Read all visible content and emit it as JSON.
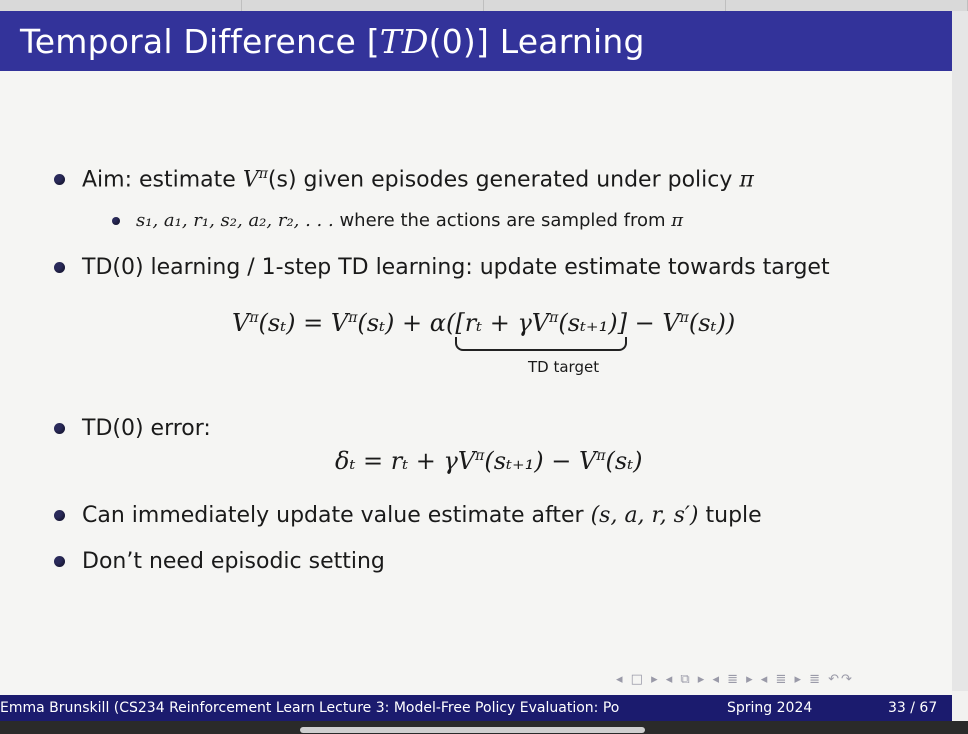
{
  "title": {
    "prefix": "Temporal Difference [",
    "math": "TD",
    "mid": "(0)",
    "suffix": "] Learning"
  },
  "bullets": {
    "aim_a": "Aim: estimate ",
    "aim_math": "V",
    "aim_sup": "π",
    "aim_b": "(s) given episodes generated under policy ",
    "aim_pi": "π",
    "sub_seq": "s₁, a₁, r₁, s₂, a₂, r₂, . . .",
    "sub_text": " where the actions are sampled from ",
    "sub_pi": "π",
    "td0": "TD(0) learning / 1-step TD learning: update estimate towards target",
    "error": "TD(0) error:",
    "immediate_a": "Can immediately update value estimate after ",
    "immediate_tuple": "(s, a, r, s′)",
    "immediate_b": " tuple",
    "episodic": "Don’t need episodic setting"
  },
  "equations": {
    "update_lhs": "V",
    "update_sup1": "π",
    "update_mid": "(sₜ) = V",
    "update_sup2": "π",
    "update_mid2": "(sₜ) + α(",
    "target": "[rₜ + γV",
    "target_sup": "π",
    "target_end": "(sₜ₊₁)]",
    "update_tail": " − V",
    "update_sup3": "π",
    "update_end": "(sₜ))",
    "brace_label": "TD target",
    "error_eq_a": "δₜ = rₜ + γV",
    "error_sup1": "π",
    "error_eq_b": "(sₜ₊₁) − V",
    "error_sup2": "π",
    "error_eq_c": "(sₜ)"
  },
  "footer": {
    "author": "Emma Brunskill (CS234 Reinforcement Learn",
    "lecture": "Lecture 3: Model-Free Policy Evaluation: Po",
    "term": "Spring 2024",
    "page": "33 / 67"
  },
  "nav_symbols": "◂ □ ▸ ◂ ⧉ ▸ ◂ ≣ ▸ ◂ ≣ ▸   ≣   ↶↷",
  "colors": {
    "title_bar": "#33339a",
    "footer_bar": "#1b1b6e",
    "bullet": "#2a2a5a"
  }
}
